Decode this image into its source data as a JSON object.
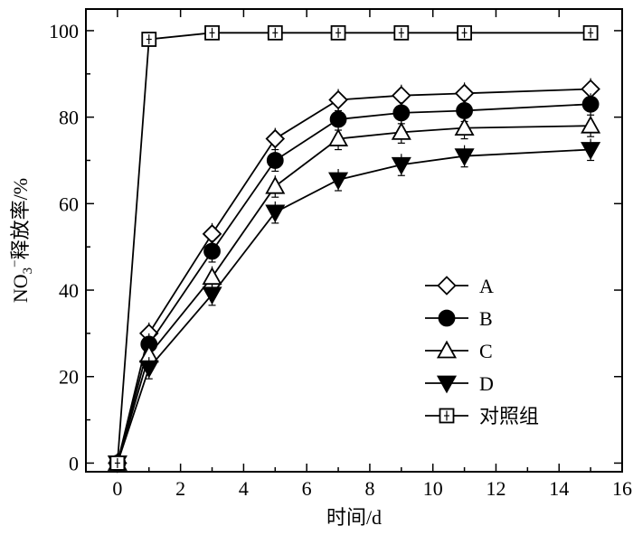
{
  "chart_data": {
    "type": "line",
    "xlabel": "时间/d",
    "ylabel_parts": {
      "main": "NO",
      "sub": "3",
      "sup": "−",
      "rest": "释放率/%"
    },
    "xlim": [
      -1,
      16
    ],
    "ylim": [
      -2,
      105
    ],
    "x_ticks": [
      0,
      2,
      4,
      6,
      8,
      10,
      12,
      14,
      16
    ],
    "y_ticks": [
      0,
      20,
      40,
      60,
      80,
      100
    ],
    "x_tick_labels": [
      "0",
      "2",
      "4",
      "6",
      "8",
      "10",
      "12",
      "14",
      "16"
    ],
    "y_tick_labels": [
      "0",
      "20",
      "40",
      "60",
      "80",
      "100"
    ],
    "legend_position": "lower-right",
    "grid": false,
    "series": [
      {
        "name": "A",
        "marker": "diamond-open",
        "x": [
          0,
          1,
          3,
          5,
          7,
          9,
          11,
          15
        ],
        "values": [
          0,
          30,
          53,
          75,
          84,
          85,
          85.5,
          86.5
        ]
      },
      {
        "name": "B",
        "marker": "circle-filled",
        "x": [
          0,
          1,
          3,
          5,
          7,
          9,
          11,
          15
        ],
        "values": [
          0,
          27.5,
          49,
          70,
          79.5,
          81,
          81.5,
          83
        ]
      },
      {
        "name": "C",
        "marker": "triangle-up-open",
        "x": [
          0,
          1,
          3,
          5,
          7,
          9,
          11,
          15
        ],
        "values": [
          0,
          25,
          43,
          64,
          75,
          76.5,
          77.5,
          78
        ]
      },
      {
        "name": "D",
        "marker": "triangle-down-filled",
        "x": [
          0,
          1,
          3,
          5,
          7,
          9,
          11,
          15
        ],
        "values": [
          0,
          22,
          39,
          58,
          65.5,
          69,
          71,
          72.5
        ]
      },
      {
        "name": "对照组",
        "marker": "square-open-cross",
        "x": [
          0,
          1,
          3,
          5,
          7,
          9,
          11,
          15
        ],
        "values": [
          0,
          98,
          99.5,
          99.5,
          99.5,
          99.5,
          99.5,
          99.5
        ]
      }
    ]
  }
}
